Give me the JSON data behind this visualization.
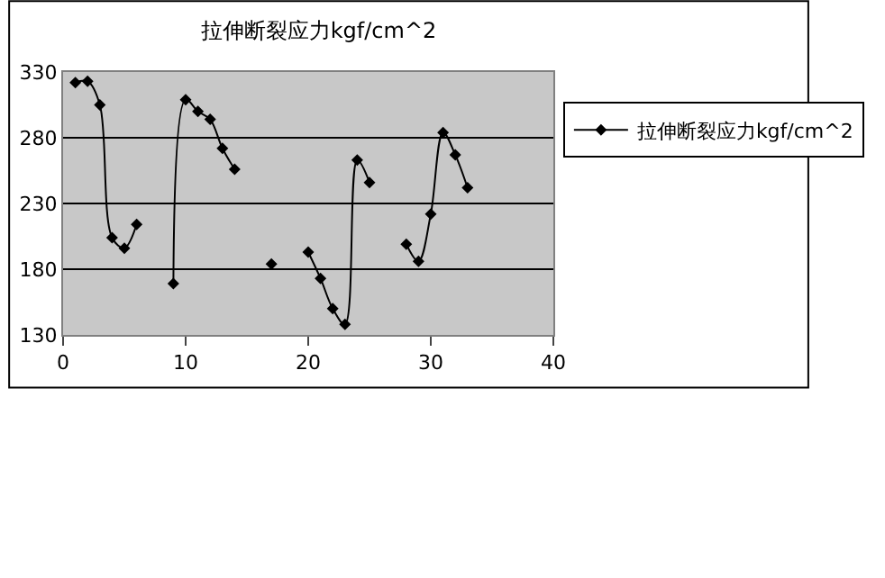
{
  "chart_data": {
    "type": "line",
    "title": "拉伸断裂应力kgf/cm^2",
    "x": [
      1,
      2,
      3,
      4,
      5,
      6,
      7,
      8,
      9,
      10,
      11,
      12,
      13,
      14,
      15,
      16,
      17,
      18,
      19,
      20,
      21,
      22,
      23,
      24,
      25,
      26,
      27,
      28,
      29,
      30,
      31,
      32,
      33
    ],
    "series": [
      {
        "name": "拉伸断裂应力kgf/cm^2",
        "color": "#000000",
        "values": [
          322,
          323,
          305,
          204,
          196,
          214,
          null,
          null,
          169,
          309,
          300,
          294,
          272,
          256,
          null,
          null,
          184,
          null,
          null,
          193,
          173,
          150,
          138,
          263,
          246,
          null,
          null,
          199,
          186,
          222,
          284,
          267,
          242
        ]
      }
    ],
    "xlim": [
      0,
      40
    ],
    "xticks": [
      0,
      10,
      20,
      30,
      40
    ],
    "ylim": [
      130,
      330
    ],
    "yticks": [
      130,
      180,
      230,
      280,
      330
    ],
    "grid": "y",
    "legend": "right",
    "marker": "diamond",
    "line_style": "solid"
  }
}
